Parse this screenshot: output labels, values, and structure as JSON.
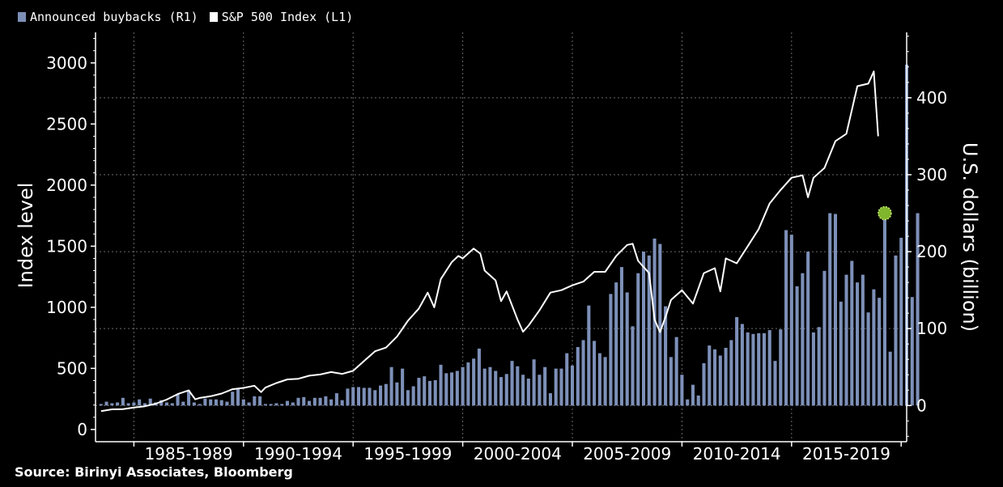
{
  "legend": {
    "buybacks_label": "Announced buybacks (R1)",
    "sp500_label": "S&P 500 Index (L1)"
  },
  "source": "Source: Birinyi Associates, Bloomberg",
  "colors": {
    "background": "#000000",
    "buyback_bar": "#7d90b8",
    "sp500_line": "#ffffff",
    "marker": "#7fb62d",
    "grid": "#6a6a6a"
  },
  "chart_data": {
    "type": "bar",
    "title": "",
    "left_axis": {
      "label": "Index level",
      "ylim": [
        -100,
        3250
      ],
      "ticks": [
        0,
        500,
        1000,
        1500,
        2000,
        2500,
        3000
      ]
    },
    "right_axis": {
      "label": "U.S. dollars (billion)",
      "ylim": [
        -47,
        485
      ],
      "ticks": [
        0,
        100,
        200,
        300,
        400
      ]
    },
    "x_axis": {
      "categories": [
        "1985-1989",
        "1990-1994",
        "1995-1999",
        "2000-2004",
        "2005-2009",
        "2010-2014",
        "2015-2019"
      ],
      "range": [
        1983.25,
        2020.25
      ]
    },
    "grid": true,
    "legend_position": "top-left",
    "series": [
      {
        "name": "Announced buybacks (R1)",
        "axis": "right",
        "start": 1983.5,
        "step": 0.25,
        "values": [
          2,
          5,
          3,
          4,
          10,
          3,
          4,
          8,
          3,
          9,
          4,
          7,
          4,
          3,
          15,
          5,
          20,
          4,
          2,
          9,
          8,
          8,
          7,
          5,
          18,
          22,
          8,
          4,
          12,
          12,
          2,
          2,
          3,
          2,
          6,
          4,
          10,
          11,
          6,
          10,
          10,
          12,
          8,
          16,
          7,
          22,
          24,
          24,
          23,
          23,
          20,
          26,
          28,
          50,
          30,
          48,
          20,
          25,
          36,
          38,
          32,
          33,
          53,
          42,
          43,
          45,
          50,
          56,
          61,
          74,
          48,
          50,
          45,
          37,
          41,
          58,
          51,
          40,
          35,
          60,
          40,
          50,
          16,
          48,
          48,
          68,
          52,
          76,
          85,
          130,
          84,
          68,
          63,
          145,
          160,
          180,
          147,
          103,
          172,
          200,
          195,
          217,
          210,
          129,
          63,
          89,
          40,
          8,
          27,
          13,
          55,
          78,
          73,
          65,
          75,
          85,
          115,
          106,
          95,
          93,
          94,
          94,
          98,
          58,
          99,
          228,
          222,
          155,
          172,
          200,
          95,
          102,
          175,
          250,
          249,
          135,
          170,
          188,
          160,
          170,
          121,
          151,
          140,
          249,
          70,
          195,
          218,
          443,
          141,
          250
        ]
      },
      {
        "name": "S&P 500 Index (L1)",
        "axis": "left",
        "points": [
          [
            1983.5,
            150
          ],
          [
            1984.0,
            165
          ],
          [
            1984.5,
            166
          ],
          [
            1985.0,
            180
          ],
          [
            1985.5,
            190
          ],
          [
            1986.0,
            211
          ],
          [
            1986.5,
            245
          ],
          [
            1987.0,
            290
          ],
          [
            1987.5,
            320
          ],
          [
            1987.8,
            247
          ],
          [
            1988.0,
            258
          ],
          [
            1988.5,
            272
          ],
          [
            1989.0,
            294
          ],
          [
            1989.5,
            330
          ],
          [
            1990.0,
            340
          ],
          [
            1990.5,
            358
          ],
          [
            1990.8,
            306
          ],
          [
            1991.0,
            343
          ],
          [
            1991.5,
            380
          ],
          [
            1992.0,
            410
          ],
          [
            1992.5,
            415
          ],
          [
            1993.0,
            440
          ],
          [
            1993.5,
            450
          ],
          [
            1994.0,
            470
          ],
          [
            1994.5,
            455
          ],
          [
            1995.0,
            480
          ],
          [
            1995.5,
            560
          ],
          [
            1996.0,
            640
          ],
          [
            1996.5,
            670
          ],
          [
            1997.0,
            760
          ],
          [
            1997.5,
            890
          ],
          [
            1998.0,
            990
          ],
          [
            1998.4,
            1120
          ],
          [
            1998.7,
            1000
          ],
          [
            1999.0,
            1230
          ],
          [
            1999.5,
            1370
          ],
          [
            1999.8,
            1420
          ],
          [
            2000.0,
            1400
          ],
          [
            2000.5,
            1480
          ],
          [
            2000.8,
            1440
          ],
          [
            2001.0,
            1300
          ],
          [
            2001.5,
            1220
          ],
          [
            2001.75,
            1050
          ],
          [
            2002.0,
            1130
          ],
          [
            2002.5,
            900
          ],
          [
            2002.75,
            800
          ],
          [
            2003.0,
            850
          ],
          [
            2003.5,
            975
          ],
          [
            2004.0,
            1120
          ],
          [
            2004.5,
            1140
          ],
          [
            2005.0,
            1180
          ],
          [
            2005.5,
            1210
          ],
          [
            2006.0,
            1290
          ],
          [
            2006.5,
            1290
          ],
          [
            2007.0,
            1420
          ],
          [
            2007.5,
            1510
          ],
          [
            2007.75,
            1520
          ],
          [
            2008.0,
            1380
          ],
          [
            2008.5,
            1280
          ],
          [
            2008.75,
            900
          ],
          [
            2009.0,
            797
          ],
          [
            2009.25,
            920
          ],
          [
            2009.5,
            1060
          ],
          [
            2010.0,
            1140
          ],
          [
            2010.5,
            1030
          ],
          [
            2011.0,
            1280
          ],
          [
            2011.5,
            1320
          ],
          [
            2011.75,
            1130
          ],
          [
            2012.0,
            1400
          ],
          [
            2012.5,
            1360
          ],
          [
            2013.0,
            1500
          ],
          [
            2013.5,
            1640
          ],
          [
            2014.0,
            1850
          ],
          [
            2014.5,
            1960
          ],
          [
            2015.0,
            2060
          ],
          [
            2015.5,
            2080
          ],
          [
            2015.75,
            1900
          ],
          [
            2016.0,
            2060
          ],
          [
            2016.5,
            2140
          ],
          [
            2017.0,
            2360
          ],
          [
            2017.5,
            2420
          ],
          [
            2018.0,
            2810
          ],
          [
            2018.5,
            2830
          ],
          [
            2018.75,
            2930
          ],
          [
            2018.95,
            2400
          ]
        ]
      }
    ],
    "marker": {
      "year": 2019.25,
      "value": 1770,
      "axis": "left"
    }
  }
}
